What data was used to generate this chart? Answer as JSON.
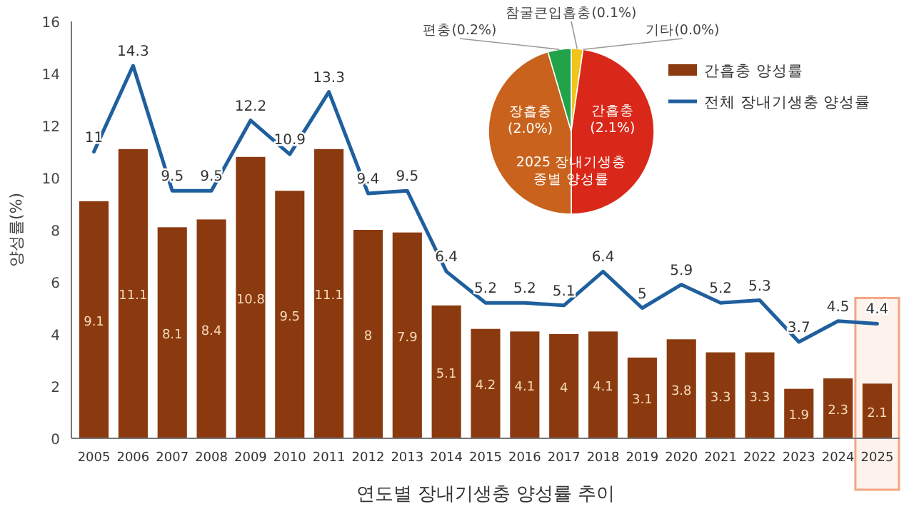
{
  "chart_data": [
    {
      "type": "bar",
      "xlabel": "연도별 장내기생충 양성률 추이",
      "ylabel": "양성률(%)",
      "categories": [
        "2005",
        "2006",
        "2007",
        "2008",
        "2009",
        "2010",
        "2011",
        "2012",
        "2013",
        "2014",
        "2015",
        "2016",
        "2017",
        "2018",
        "2019",
        "2020",
        "2021",
        "2022",
        "2023",
        "2024",
        "2025"
      ],
      "series": [
        {
          "name": "간흡충 양성률",
          "color": "#8b3a0f",
          "values": [
            9.1,
            11.1,
            8.1,
            8.4,
            10.8,
            9.5,
            11.1,
            8,
            7.9,
            5.1,
            4.2,
            4.1,
            4,
            4.1,
            3.1,
            3.8,
            3.3,
            3.3,
            1.9,
            2.3,
            2.1
          ]
        },
        {
          "name": "전체 장내기생충 양성률",
          "type": "line",
          "color": "#1f5f9e",
          "values": [
            11,
            14.3,
            9.5,
            9.5,
            12.2,
            10.9,
            13.3,
            9.4,
            9.5,
            6.4,
            5.2,
            5.2,
            5.1,
            6.4,
            5,
            5.9,
            5.2,
            5.3,
            3.7,
            4.5,
            4.4
          ]
        }
      ],
      "ylim": [
        0,
        16
      ],
      "yticks": [
        0,
        2,
        4,
        6,
        8,
        10,
        12,
        14,
        16
      ],
      "data_labels": true,
      "legend": "top right",
      "marker": "none",
      "line_style": "solid",
      "bands": [
        {
          "axis": "x",
          "from": "2025",
          "to": "2025",
          "color": "#f4a582"
        }
      ]
    },
    {
      "type": "pie",
      "title": "2025 장내기생충 종별 양성률",
      "categories": [
        "참굴큰입흡충(0.1%)",
        "기타(0.0%)",
        "간흡충(2.1%)",
        "장흡충(2.0%)",
        "편충(0.2%)"
      ],
      "values": [
        0.1,
        0.0,
        2.1,
        2.0,
        0.2
      ],
      "colors": [
        "#f0c419",
        "#c9b27a",
        "#d9281a",
        "#c8621c",
        "#22a34a"
      ]
    }
  ]
}
